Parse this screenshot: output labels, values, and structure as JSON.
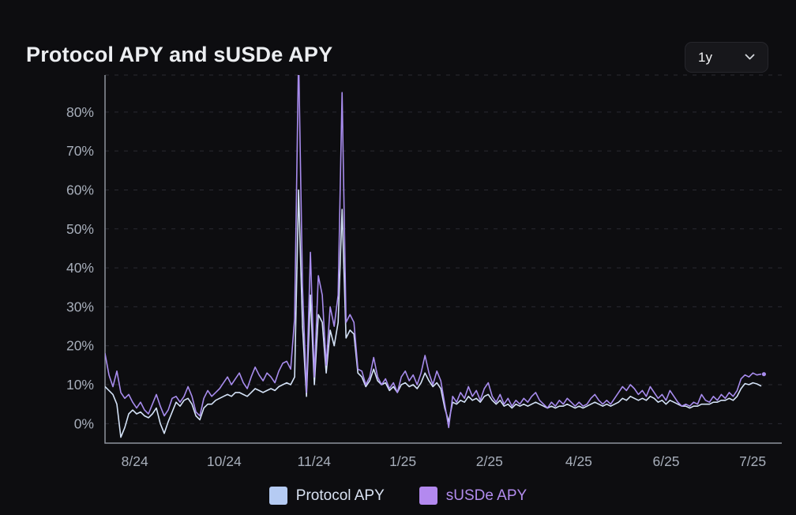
{
  "header": {
    "title": "Protocol APY and sUSDe APY",
    "range_value": "1y"
  },
  "legend": {
    "items": [
      {
        "label": "Protocol APY",
        "color": "#b5cbf3",
        "text_color": "#d9e2f2"
      },
      {
        "label": "sUSDe APY",
        "color": "#b389ef",
        "text_color": "#b28cee"
      }
    ]
  },
  "chart_data": {
    "type": "line",
    "title": "Protocol APY and sUSDe APY",
    "xlabel": "",
    "ylabel": "",
    "ylim": [
      -5,
      89.5
    ],
    "grid": "dashed-horizontal",
    "legend_position": "bottom",
    "x_end_fraction": 0.969,
    "y_ticks": [
      {
        "label": "0%",
        "value": 0
      },
      {
        "label": "10%",
        "value": 10
      },
      {
        "label": "20%",
        "value": 20
      },
      {
        "label": "30%",
        "value": 30
      },
      {
        "label": "40%",
        "value": 40
      },
      {
        "label": "50%",
        "value": 50
      },
      {
        "label": "60%",
        "value": 60
      },
      {
        "label": "70%",
        "value": 70
      },
      {
        "label": "80%",
        "value": 80
      }
    ],
    "x_ticks": [
      {
        "label": "8/24",
        "f": 0.044
      },
      {
        "label": "10/24",
        "f": 0.176
      },
      {
        "label": "11/24",
        "f": 0.309
      },
      {
        "label": "1/25",
        "f": 0.44
      },
      {
        "label": "2/25",
        "f": 0.568
      },
      {
        "label": "4/25",
        "f": 0.7
      },
      {
        "label": "6/25",
        "f": 0.829
      },
      {
        "label": "7/25",
        "f": 0.957
      }
    ],
    "series": [
      {
        "name": "Protocol APY",
        "color": "#d4e2f7",
        "end_dot": false,
        "values": [
          9.5,
          8.5,
          7.5,
          5,
          -3.5,
          -1,
          2.5,
          3.5,
          2.5,
          3,
          2,
          1.5,
          2.5,
          4,
          0,
          -2.5,
          0.5,
          3,
          5.5,
          4.5,
          6,
          6.5,
          5,
          2,
          1,
          4,
          5,
          5,
          6,
          6.5,
          7,
          7.5,
          7,
          8,
          8,
          7.5,
          7,
          8,
          9,
          8.5,
          8,
          8.5,
          9,
          8.5,
          9.5,
          10,
          10.5,
          10,
          12,
          60,
          25,
          7,
          33,
          10,
          28,
          26,
          13,
          24,
          20,
          26,
          55,
          22,
          24,
          23,
          13,
          12,
          9.5,
          11,
          14,
          11,
          10,
          10.5,
          8.5,
          9.5,
          8,
          10,
          10.5,
          9.5,
          10,
          9,
          10.5,
          13,
          11,
          9.5,
          10.5,
          9,
          4,
          0.5,
          5.5,
          5,
          6,
          5.5,
          7,
          6,
          6.5,
          5.5,
          7,
          7.5,
          6,
          5,
          6,
          4.5,
          5,
          4,
          5,
          4.5,
          5,
          4.5,
          5,
          5.5,
          5,
          4.5,
          4,
          4.5,
          4,
          4.5,
          4.5,
          5,
          4.5,
          4,
          4.5,
          4,
          4.5,
          5,
          5.5,
          5,
          4.5,
          5,
          4.5,
          5,
          5.5,
          6.5,
          6,
          7,
          6.5,
          6,
          6.5,
          6,
          7,
          6.5,
          5.5,
          6,
          5,
          6,
          5.5,
          5,
          4.5,
          4.5,
          4,
          4.5,
          4.5,
          5,
          5,
          5,
          5.5,
          5.5,
          6,
          6,
          6.5,
          6,
          7,
          9,
          10.3,
          10,
          10.5,
          10.2,
          9.7
        ]
      },
      {
        "name": "sUSDe APY",
        "color": "#a88cee",
        "end_dot": true,
        "values": [
          18,
          12.5,
          9.5,
          13.5,
          8,
          6.5,
          7.5,
          5.5,
          4,
          5.5,
          3.5,
          2.5,
          5,
          7.5,
          4.5,
          2,
          3.5,
          6.5,
          7,
          5.5,
          7,
          9.5,
          7,
          3,
          2,
          6.5,
          8.5,
          7,
          8,
          9,
          10.5,
          12,
          10,
          11.5,
          13,
          10.5,
          9,
          12,
          14.5,
          12.5,
          11,
          13,
          12,
          10.5,
          13.5,
          15.5,
          16,
          14,
          27,
          95,
          35,
          8,
          44,
          12,
          38,
          33,
          15,
          30,
          25,
          33,
          85,
          26,
          28,
          26,
          14,
          13.5,
          10,
          12,
          17,
          12,
          10,
          11.5,
          9,
          10.5,
          8,
          12,
          13.5,
          11,
          12.5,
          10,
          13,
          17.5,
          13,
          10,
          13.5,
          11,
          5,
          -1,
          7,
          5.5,
          8,
          6.5,
          9.5,
          7,
          8.5,
          6,
          9,
          10.5,
          7,
          5.5,
          7.5,
          5,
          6.5,
          4.5,
          6,
          5,
          6.5,
          5.5,
          7,
          8,
          6,
          5,
          4,
          5.5,
          4.5,
          6,
          5,
          6.5,
          5.5,
          4.5,
          5.5,
          4.5,
          5,
          6.5,
          7.5,
          6,
          5,
          6,
          5,
          6.5,
          8,
          9.5,
          8.5,
          10,
          9,
          7.5,
          8.5,
          7,
          9.5,
          8,
          6.5,
          7.5,
          6,
          8.5,
          7,
          5.5,
          4.5,
          5,
          4.5,
          5.5,
          5,
          7.5,
          6,
          5.5,
          7,
          6,
          7.5,
          6.5,
          8,
          7,
          8.5,
          11.5,
          12.5,
          12,
          13,
          12.5,
          12.7
        ]
      }
    ]
  }
}
